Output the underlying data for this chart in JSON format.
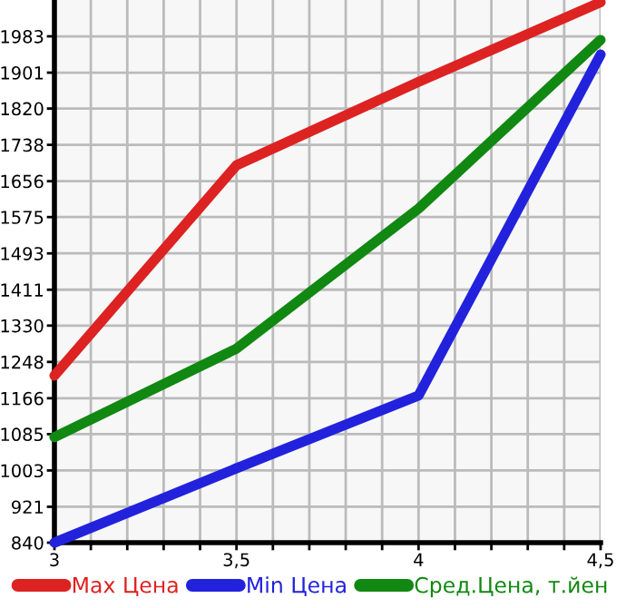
{
  "chart_data": {
    "type": "line",
    "x": [
      3,
      3.5,
      4,
      4.5
    ],
    "series": [
      {
        "name": "Max Цена",
        "color": "#dd2222",
        "values": [
          1217,
          1692,
          1880,
          2060
        ]
      },
      {
        "name": "Min Цена",
        "color": "#2222dd",
        "values": [
          840,
          1008,
          1172,
          1942
        ]
      },
      {
        "name": "Сред.Цена, т.йен",
        "color": "#118811",
        "values": [
          1078,
          1278,
          1594,
          1975
        ]
      }
    ],
    "xlim": [
      3,
      4.5
    ],
    "xticks": [
      3,
      {
        "value": 3.1,
        "label": null
      },
      {
        "value": 3.2,
        "label": null
      },
      {
        "value": 3.3,
        "label": null
      },
      {
        "value": 3.4,
        "label": null
      },
      {
        "value": 3.5,
        "label": "3,5"
      },
      {
        "value": 3.6,
        "label": null
      },
      {
        "value": 3.7,
        "label": null
      },
      {
        "value": 3.8,
        "label": null
      },
      {
        "value": 3.9,
        "label": null
      },
      4,
      {
        "value": 4.1,
        "label": null
      },
      {
        "value": 4.2,
        "label": null
      },
      {
        "value": 4.3,
        "label": null
      },
      {
        "value": 4.4,
        "label": null
      },
      {
        "value": 4.5,
        "label": "4,5"
      }
    ],
    "ylim": [
      840,
      2065
    ],
    "yticks": [
      840,
      921,
      1003,
      1085,
      1166,
      1248,
      1330,
      1411,
      1493,
      1575,
      1656,
      1738,
      1820,
      1901,
      1983
    ],
    "grid": true,
    "legend": "bottom",
    "marker": "none",
    "line_style": "solid"
  }
}
